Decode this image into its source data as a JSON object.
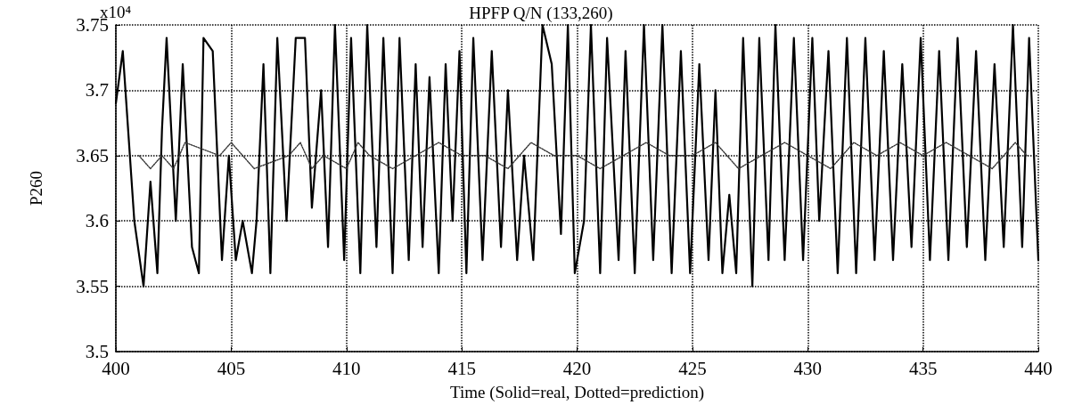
{
  "chart_data": {
    "type": "line",
    "title": "HPFP Q/N (133,260)",
    "xlabel": "Time (Solid=real, Dotted=prediction)",
    "ylabel": "P260",
    "annotations": [
      "x10⁴"
    ],
    "xlim": [
      400,
      440
    ],
    "xticks": [
      400,
      405,
      410,
      415,
      420,
      425,
      430,
      435,
      440
    ],
    "ylim": [
      3.5,
      3.75
    ],
    "yticks": [
      3.5,
      3.55,
      3.6,
      3.65,
      3.7,
      3.75
    ],
    "grid": true,
    "series": [
      {
        "color": "#000000",
        "line_style": "solid",
        "x": [
          400,
          400.3,
          400.8,
          401.2,
          401.5,
          401.8,
          402,
          402.2,
          402.6,
          402.9,
          403.3,
          403.6,
          403.8,
          404.2,
          404.6,
          404.9,
          405.2,
          405.5,
          405.9,
          406.1,
          406.4,
          406.7,
          407,
          407.4,
          407.8,
          408.2,
          408.5,
          408.9,
          409.2,
          409.5,
          409.9,
          410.2,
          410.6,
          410.9,
          411.3,
          411.6,
          412,
          412.3,
          412.7,
          413,
          413.3,
          413.6,
          414,
          414.3,
          414.6,
          414.9,
          415.2,
          415.5,
          415.9,
          416.3,
          416.7,
          417,
          417.4,
          417.7,
          418.1,
          418.5,
          418.9,
          419.3,
          419.6,
          419.9,
          420.3,
          420.6,
          421,
          421.3,
          421.8,
          422.1,
          422.5,
          422.9,
          423.3,
          423.7,
          424.1,
          424.5,
          424.9,
          425.3,
          425.7,
          426,
          426.3,
          426.6,
          426.9,
          427.2,
          427.6,
          427.9,
          428.3,
          428.6,
          429,
          429.4,
          429.8,
          430.2,
          430.5,
          430.9,
          431.3,
          431.7,
          432.1,
          432.5,
          432.9,
          433.3,
          433.7,
          434.1,
          434.5,
          434.9,
          435.3,
          435.7,
          436.1,
          436.5,
          436.9,
          437.3,
          437.7,
          438.1,
          438.5,
          438.9,
          439.3,
          439.6,
          440
        ],
        "values": [
          3.69,
          3.73,
          3.6,
          3.55,
          3.63,
          3.56,
          3.67,
          3.74,
          3.6,
          3.72,
          3.58,
          3.56,
          3.74,
          3.73,
          3.57,
          3.65,
          3.57,
          3.6,
          3.56,
          3.6,
          3.72,
          3.56,
          3.74,
          3.6,
          3.74,
          3.74,
          3.61,
          3.7,
          3.58,
          3.75,
          3.57,
          3.74,
          3.56,
          3.75,
          3.58,
          3.74,
          3.56,
          3.74,
          3.57,
          3.72,
          3.58,
          3.71,
          3.56,
          3.72,
          3.6,
          3.73,
          3.56,
          3.74,
          3.57,
          3.73,
          3.58,
          3.7,
          3.57,
          3.65,
          3.57,
          3.75,
          3.72,
          3.59,
          3.75,
          3.56,
          3.6,
          3.75,
          3.56,
          3.74,
          3.57,
          3.73,
          3.56,
          3.75,
          3.57,
          3.75,
          3.56,
          3.73,
          3.56,
          3.72,
          3.57,
          3.7,
          3.56,
          3.62,
          3.56,
          3.74,
          3.55,
          3.74,
          3.57,
          3.75,
          3.57,
          3.74,
          3.57,
          3.74,
          3.6,
          3.73,
          3.56,
          3.74,
          3.56,
          3.74,
          3.57,
          3.73,
          3.57,
          3.72,
          3.58,
          3.74,
          3.57,
          3.73,
          3.57,
          3.74,
          3.58,
          3.73,
          3.57,
          3.72,
          3.58,
          3.75,
          3.58,
          3.74,
          3.57
        ]
      },
      {
        "color": "#333333",
        "line_style": "dotted",
        "x": [
          401,
          401.5,
          402,
          402.5,
          403,
          404.5,
          405,
          405.5,
          406,
          407.5,
          408,
          408.5,
          409,
          410,
          410.5,
          411,
          412,
          413,
          414,
          415,
          416,
          417,
          418,
          419,
          420,
          421,
          422,
          423,
          424,
          425,
          426,
          427,
          428,
          429,
          430,
          431,
          432,
          433,
          434,
          435,
          436,
          437,
          438,
          439,
          439.5
        ],
        "values": [
          3.65,
          3.64,
          3.65,
          3.64,
          3.66,
          3.65,
          3.66,
          3.65,
          3.64,
          3.65,
          3.66,
          3.64,
          3.65,
          3.64,
          3.66,
          3.65,
          3.64,
          3.65,
          3.66,
          3.65,
          3.65,
          3.64,
          3.66,
          3.65,
          3.65,
          3.64,
          3.65,
          3.66,
          3.65,
          3.65,
          3.66,
          3.64,
          3.65,
          3.66,
          3.65,
          3.64,
          3.66,
          3.65,
          3.66,
          3.65,
          3.66,
          3.65,
          3.64,
          3.66,
          3.65
        ]
      }
    ]
  }
}
